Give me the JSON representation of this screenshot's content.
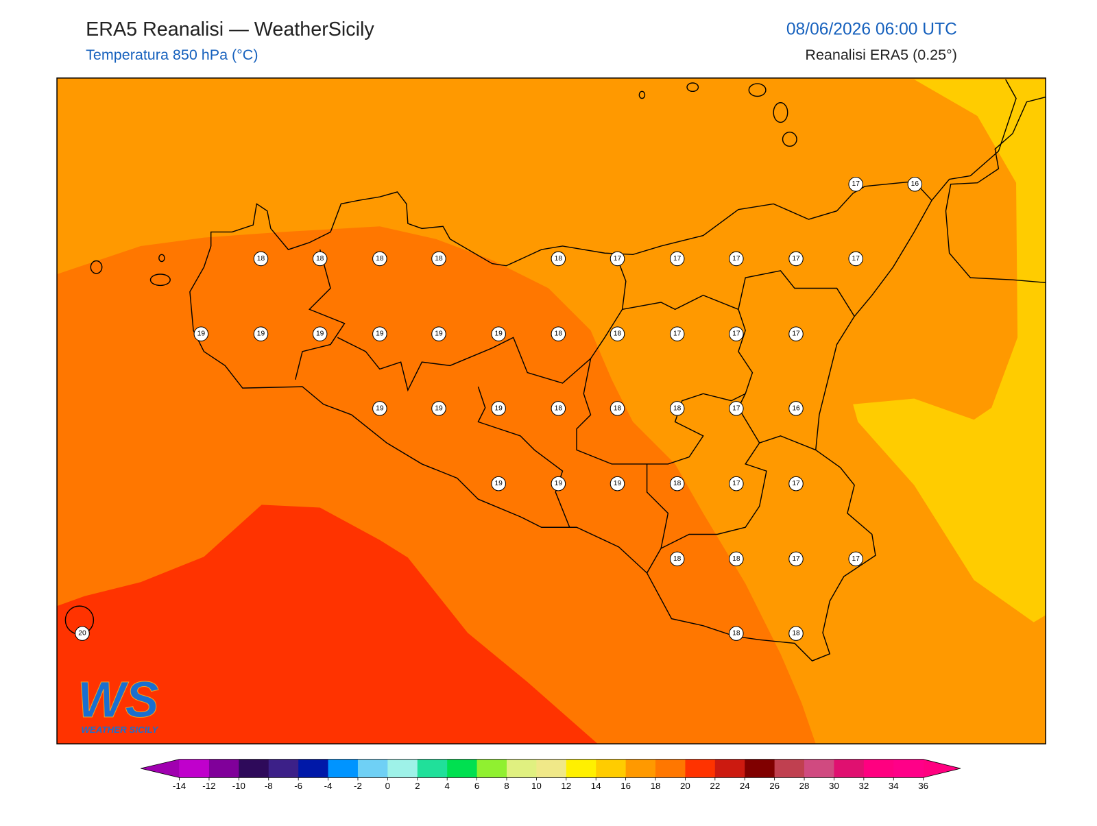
{
  "header": {
    "title": "ERA5 Reanalisi — WeatherSicily",
    "subtitle": "Temperatura 850 hPa (°C)",
    "datetime": "08/06/2026 06:00 UTC",
    "source": "Reanalisi ERA5 (0.25°)"
  },
  "logo": {
    "mark": "WS",
    "name": "WEATHER SICILY"
  },
  "stations": {
    "values": [
      17,
      16,
      18,
      18,
      18,
      18,
      18,
      17,
      17,
      17,
      17,
      17,
      19,
      19,
      19,
      19,
      19,
      19,
      18,
      18,
      17,
      17,
      17,
      19,
      19,
      19,
      18,
      18,
      18,
      17,
      16,
      19,
      19,
      19,
      18,
      17,
      17,
      18,
      18,
      17,
      17,
      20,
      18,
      18
    ]
  },
  "colorbar": {
    "ticks": [
      -14,
      -12,
      -10,
      -8,
      -6,
      -4,
      -2,
      0,
      2,
      4,
      6,
      8,
      10,
      12,
      14,
      16,
      18,
      20,
      22,
      24,
      26,
      28,
      30,
      32,
      34,
      36
    ],
    "colors": [
      "#c000cc",
      "#80009a",
      "#2e0a5a",
      "#3c2088",
      "#0018a8",
      "#0094ff",
      "#6fd0f5",
      "#9ef2e8",
      "#20e09a",
      "#00e050",
      "#90f030",
      "#e0f080",
      "#f0e888",
      "#fff000",
      "#ffcc00",
      "#ff9900",
      "#ff7700",
      "#ff3300",
      "#cc1a10",
      "#800000",
      "#c04050",
      "#d04a80",
      "#e01070",
      "#ff0080",
      "#ff0088"
    ],
    "under_color": "#a000b0",
    "over_color": "#ff0080"
  }
}
